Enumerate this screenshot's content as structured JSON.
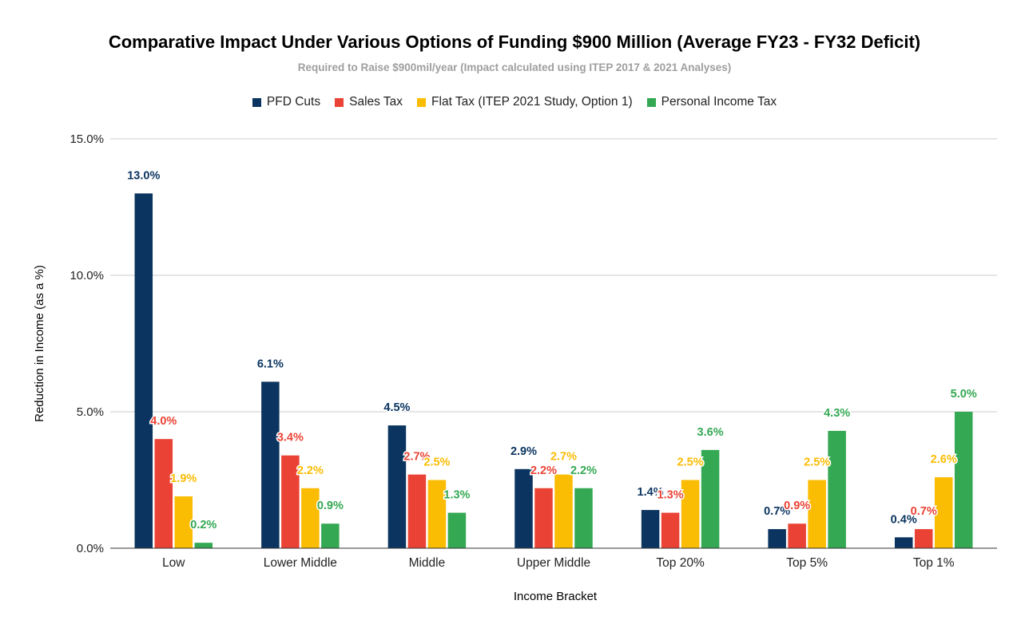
{
  "chart_data": {
    "type": "bar",
    "title": "Comparative Impact Under Various Options of Funding $900 Million (Average FY23 - FY32 Deficit)",
    "subtitle": "Required to Raise $900mil/year (Impact calculated using ITEP 2017 & 2021 Analyses)",
    "xlabel": "Income Bracket",
    "ylabel": "Reduction in Income (as a %)",
    "ylim": [
      0,
      15
    ],
    "yticks": [
      0,
      5,
      10,
      15
    ],
    "ytick_labels": [
      "0.0%",
      "5.0%",
      "10.0%",
      "15.0%"
    ],
    "grid": true,
    "legend_position": "top",
    "categories": [
      "Low",
      "Lower Middle",
      "Middle",
      "Upper Middle",
      "Top 20%",
      "Top 5%",
      "Top 1%"
    ],
    "series": [
      {
        "name": "PFD Cuts",
        "color": "#0b3560",
        "values": [
          13.0,
          6.1,
          4.5,
          2.9,
          1.4,
          0.7,
          0.4
        ],
        "labels": [
          "13.0%",
          "6.1%",
          "4.5%",
          "2.9%",
          "1.4%",
          "0.7%",
          "0.4%"
        ]
      },
      {
        "name": "Sales Tax",
        "color": "#ea4335",
        "values": [
          4.0,
          3.4,
          2.7,
          2.2,
          1.3,
          0.9,
          0.7
        ],
        "labels": [
          "4.0%",
          "3.4%",
          "2.7%",
          "2.2%",
          "1.3%",
          "0.9%",
          "0.7%"
        ]
      },
      {
        "name": "Flat Tax (ITEP 2021 Study, Option 1)",
        "color": "#fbbc04",
        "values": [
          1.9,
          2.2,
          2.5,
          2.7,
          2.5,
          2.5,
          2.6
        ],
        "labels": [
          "1.9%",
          "2.2%",
          "2.5%",
          "2.7%",
          "2.5%",
          "2.5%",
          "2.6%"
        ]
      },
      {
        "name": "Personal Income Tax",
        "color": "#34a853",
        "values": [
          0.2,
          0.9,
          1.3,
          2.2,
          3.6,
          4.3,
          5.0
        ],
        "labels": [
          "0.2%",
          "0.9%",
          "1.3%",
          "2.2%",
          "3.6%",
          "4.3%",
          "5.0%"
        ]
      }
    ]
  }
}
